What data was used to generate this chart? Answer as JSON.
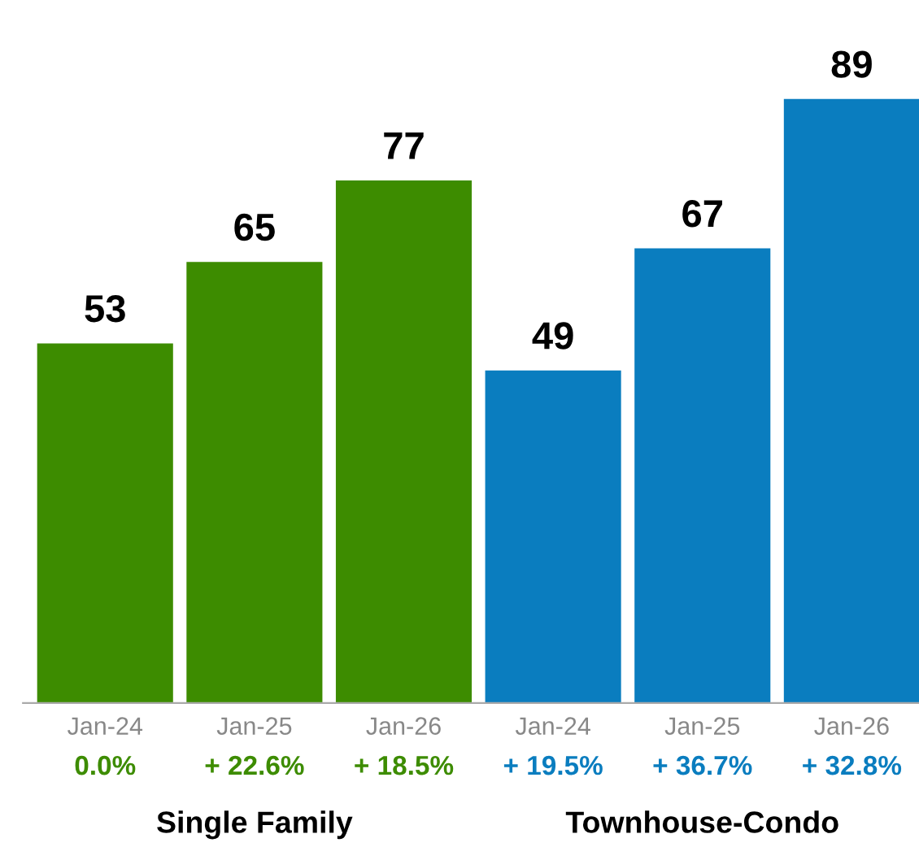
{
  "chart_data": {
    "type": "bar",
    "categories": [
      "Jan-24",
      "Jan-25",
      "Jan-26",
      "Jan-24",
      "Jan-25",
      "Jan-26"
    ],
    "values": [
      53,
      65,
      77,
      49,
      67,
      89
    ],
    "colors": [
      "#3d8c00",
      "#3d8c00",
      "#3d8c00",
      "#0a7dbf",
      "#0a7dbf",
      "#0a7dbf"
    ],
    "data_labels": true,
    "annotations": [
      "0.0%",
      "+ 22.6%",
      "+ 18.5%",
      "+ 19.5%",
      "+ 36.7%",
      "+ 32.8%",
      "Single Family",
      "Townhouse-Condo"
    ],
    "grid": false,
    "legend": false
  }
}
